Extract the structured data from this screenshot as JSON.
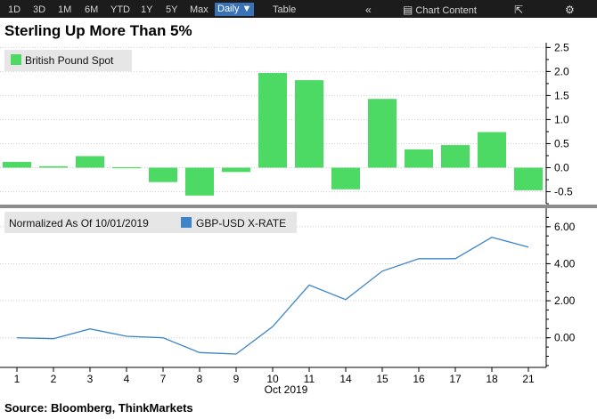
{
  "toolbar": {
    "ranges": [
      "1D",
      "3D",
      "1M",
      "6M",
      "YTD",
      "1Y",
      "5Y",
      "Max"
    ],
    "frequency": "Daily",
    "table_label": "Table",
    "chart_content_label": "Chart Content"
  },
  "title": "Sterling Up More Than 5%",
  "source": "Source: Bloomberg, ThinkMarkets",
  "colors": {
    "bar": "#4cd964",
    "line": "#3d85c6",
    "legend_box": "#e6e6e6"
  },
  "chart_data": [
    {
      "type": "bar",
      "title": "",
      "legend": "British Pound Spot",
      "legend_position": "top-left",
      "categories": [
        "1",
        "2",
        "3",
        "4",
        "7",
        "8",
        "9",
        "10",
        "11",
        "14",
        "15",
        "16",
        "17",
        "18",
        "21"
      ],
      "values": [
        0.12,
        0.03,
        0.24,
        0.01,
        -0.3,
        -0.58,
        -0.09,
        1.97,
        1.82,
        -0.45,
        1.43,
        0.38,
        0.47,
        0.74,
        -0.47
      ],
      "yticks": [
        -0.5,
        0.0,
        0.5,
        1.0,
        1.5,
        2.0,
        2.5
      ],
      "ytick_labels": [
        "-0.5",
        "0.0",
        "0.5",
        "1.0",
        "1.5",
        "2.0",
        "2.5"
      ],
      "ylim": [
        -0.75,
        2.6
      ],
      "grid": "horizontal"
    },
    {
      "type": "line",
      "legend_prefix": "Normalized As Of 10/01/2019",
      "legend": "GBP-USD X-RATE",
      "legend_position": "top-left",
      "categories": [
        "1",
        "2",
        "3",
        "4",
        "7",
        "8",
        "9",
        "10",
        "11",
        "14",
        "15",
        "16",
        "17",
        "18",
        "21"
      ],
      "values": [
        0.0,
        -0.05,
        0.48,
        0.08,
        0.0,
        -0.8,
        -0.88,
        0.6,
        2.85,
        2.06,
        3.6,
        4.27,
        4.27,
        5.43,
        4.9
      ],
      "yticks": [
        0.0,
        2.0,
        4.0,
        6.0
      ],
      "ytick_labels": [
        "0.00",
        "2.00",
        "4.00",
        "6.00"
      ],
      "ylim": [
        -1.6,
        7.0
      ],
      "xlabel": "Oct 2019",
      "grid": "horizontal"
    }
  ]
}
